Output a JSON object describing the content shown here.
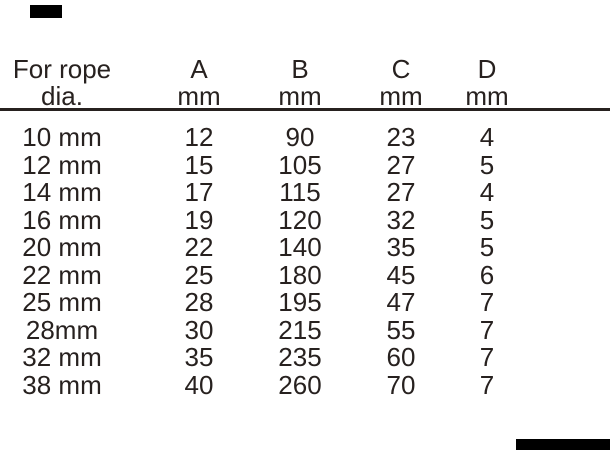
{
  "colors": {
    "ink": "#27211f",
    "corner_mark": "#000000",
    "background": "#ffffff"
  },
  "table": {
    "header": {
      "rope_col": {
        "line1": "For rope",
        "line2": "dia."
      },
      "col_a": {
        "letter": "A",
        "unit": "mm"
      },
      "col_b": {
        "letter": "B",
        "unit": "mm"
      },
      "col_c": {
        "letter": "C",
        "unit": "mm"
      },
      "col_d": {
        "letter": "D",
        "unit": "mm"
      }
    },
    "rows": [
      {
        "rope": "10 mm",
        "a": "12",
        "b": "90",
        "c": "23",
        "d": "4"
      },
      {
        "rope": "12 mm",
        "a": "15",
        "b": "105",
        "c": "27",
        "d": "5"
      },
      {
        "rope": "14 mm",
        "a": "17",
        "b": "115",
        "c": "27",
        "d": "4"
      },
      {
        "rope": "16 mm",
        "a": "19",
        "b": "120",
        "c": "32",
        "d": "5"
      },
      {
        "rope": "20 mm",
        "a": "22",
        "b": "140",
        "c": "35",
        "d": "5"
      },
      {
        "rope": "22 mm",
        "a": "25",
        "b": "180",
        "c": "45",
        "d": "6"
      },
      {
        "rope": "25 mm",
        "a": "28",
        "b": "195",
        "c": "47",
        "d": "7"
      },
      {
        "rope": "28mm",
        "a": "30",
        "b": "215",
        "c": "55",
        "d": "7"
      },
      {
        "rope": "32 mm",
        "a": "35",
        "b": "235",
        "c": "60",
        "d": "7"
      },
      {
        "rope": "38 mm",
        "a": "40",
        "b": "260",
        "c": "70",
        "d": "7"
      }
    ]
  }
}
